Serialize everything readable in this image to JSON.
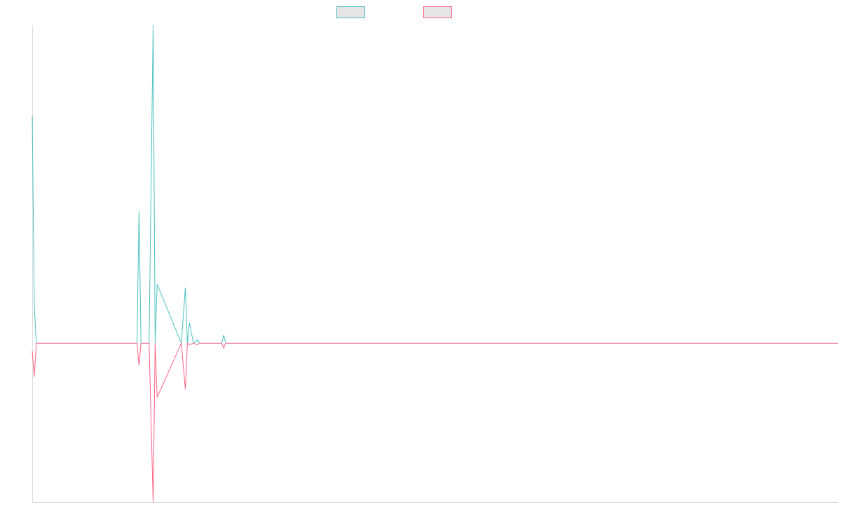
{
  "chart_data": {
    "type": "line",
    "title": "",
    "xlabel": "",
    "ylabel": "",
    "grid": false,
    "legend_position": "top-center",
    "x_range": [
      0,
      200
    ],
    "ylim": [
      -10,
      20
    ],
    "series": [
      {
        "color": "#4bc0c0",
        "x": [
          0,
          0.5,
          1,
          26,
          26.5,
          27,
          29,
          30,
          30.5,
          31,
          37,
          38,
          38.5,
          39,
          40,
          41,
          41.5,
          42,
          47,
          47.5,
          48,
          200
        ],
        "y": [
          14.3,
          2.5,
          0,
          0,
          8.3,
          0,
          0,
          20,
          0,
          3.7,
          0,
          3.5,
          0,
          1.3,
          0,
          0.2,
          0,
          0,
          0,
          0.5,
          0,
          0
        ]
      },
      {
        "color": "#ff6384",
        "x": [
          0,
          0.5,
          1,
          26,
          26.5,
          27,
          29,
          30,
          30.5,
          31,
          37,
          38,
          38.5,
          39,
          40,
          41,
          41.5,
          42,
          47,
          47.5,
          48,
          200
        ],
        "y": [
          -0.5,
          -2.1,
          0,
          0,
          -1.4,
          0,
          0,
          -10,
          0,
          -3.4,
          0,
          -2.9,
          0,
          -0.1,
          0,
          -0.1,
          0,
          0,
          0,
          -0.3,
          0,
          0
        ]
      }
    ]
  }
}
